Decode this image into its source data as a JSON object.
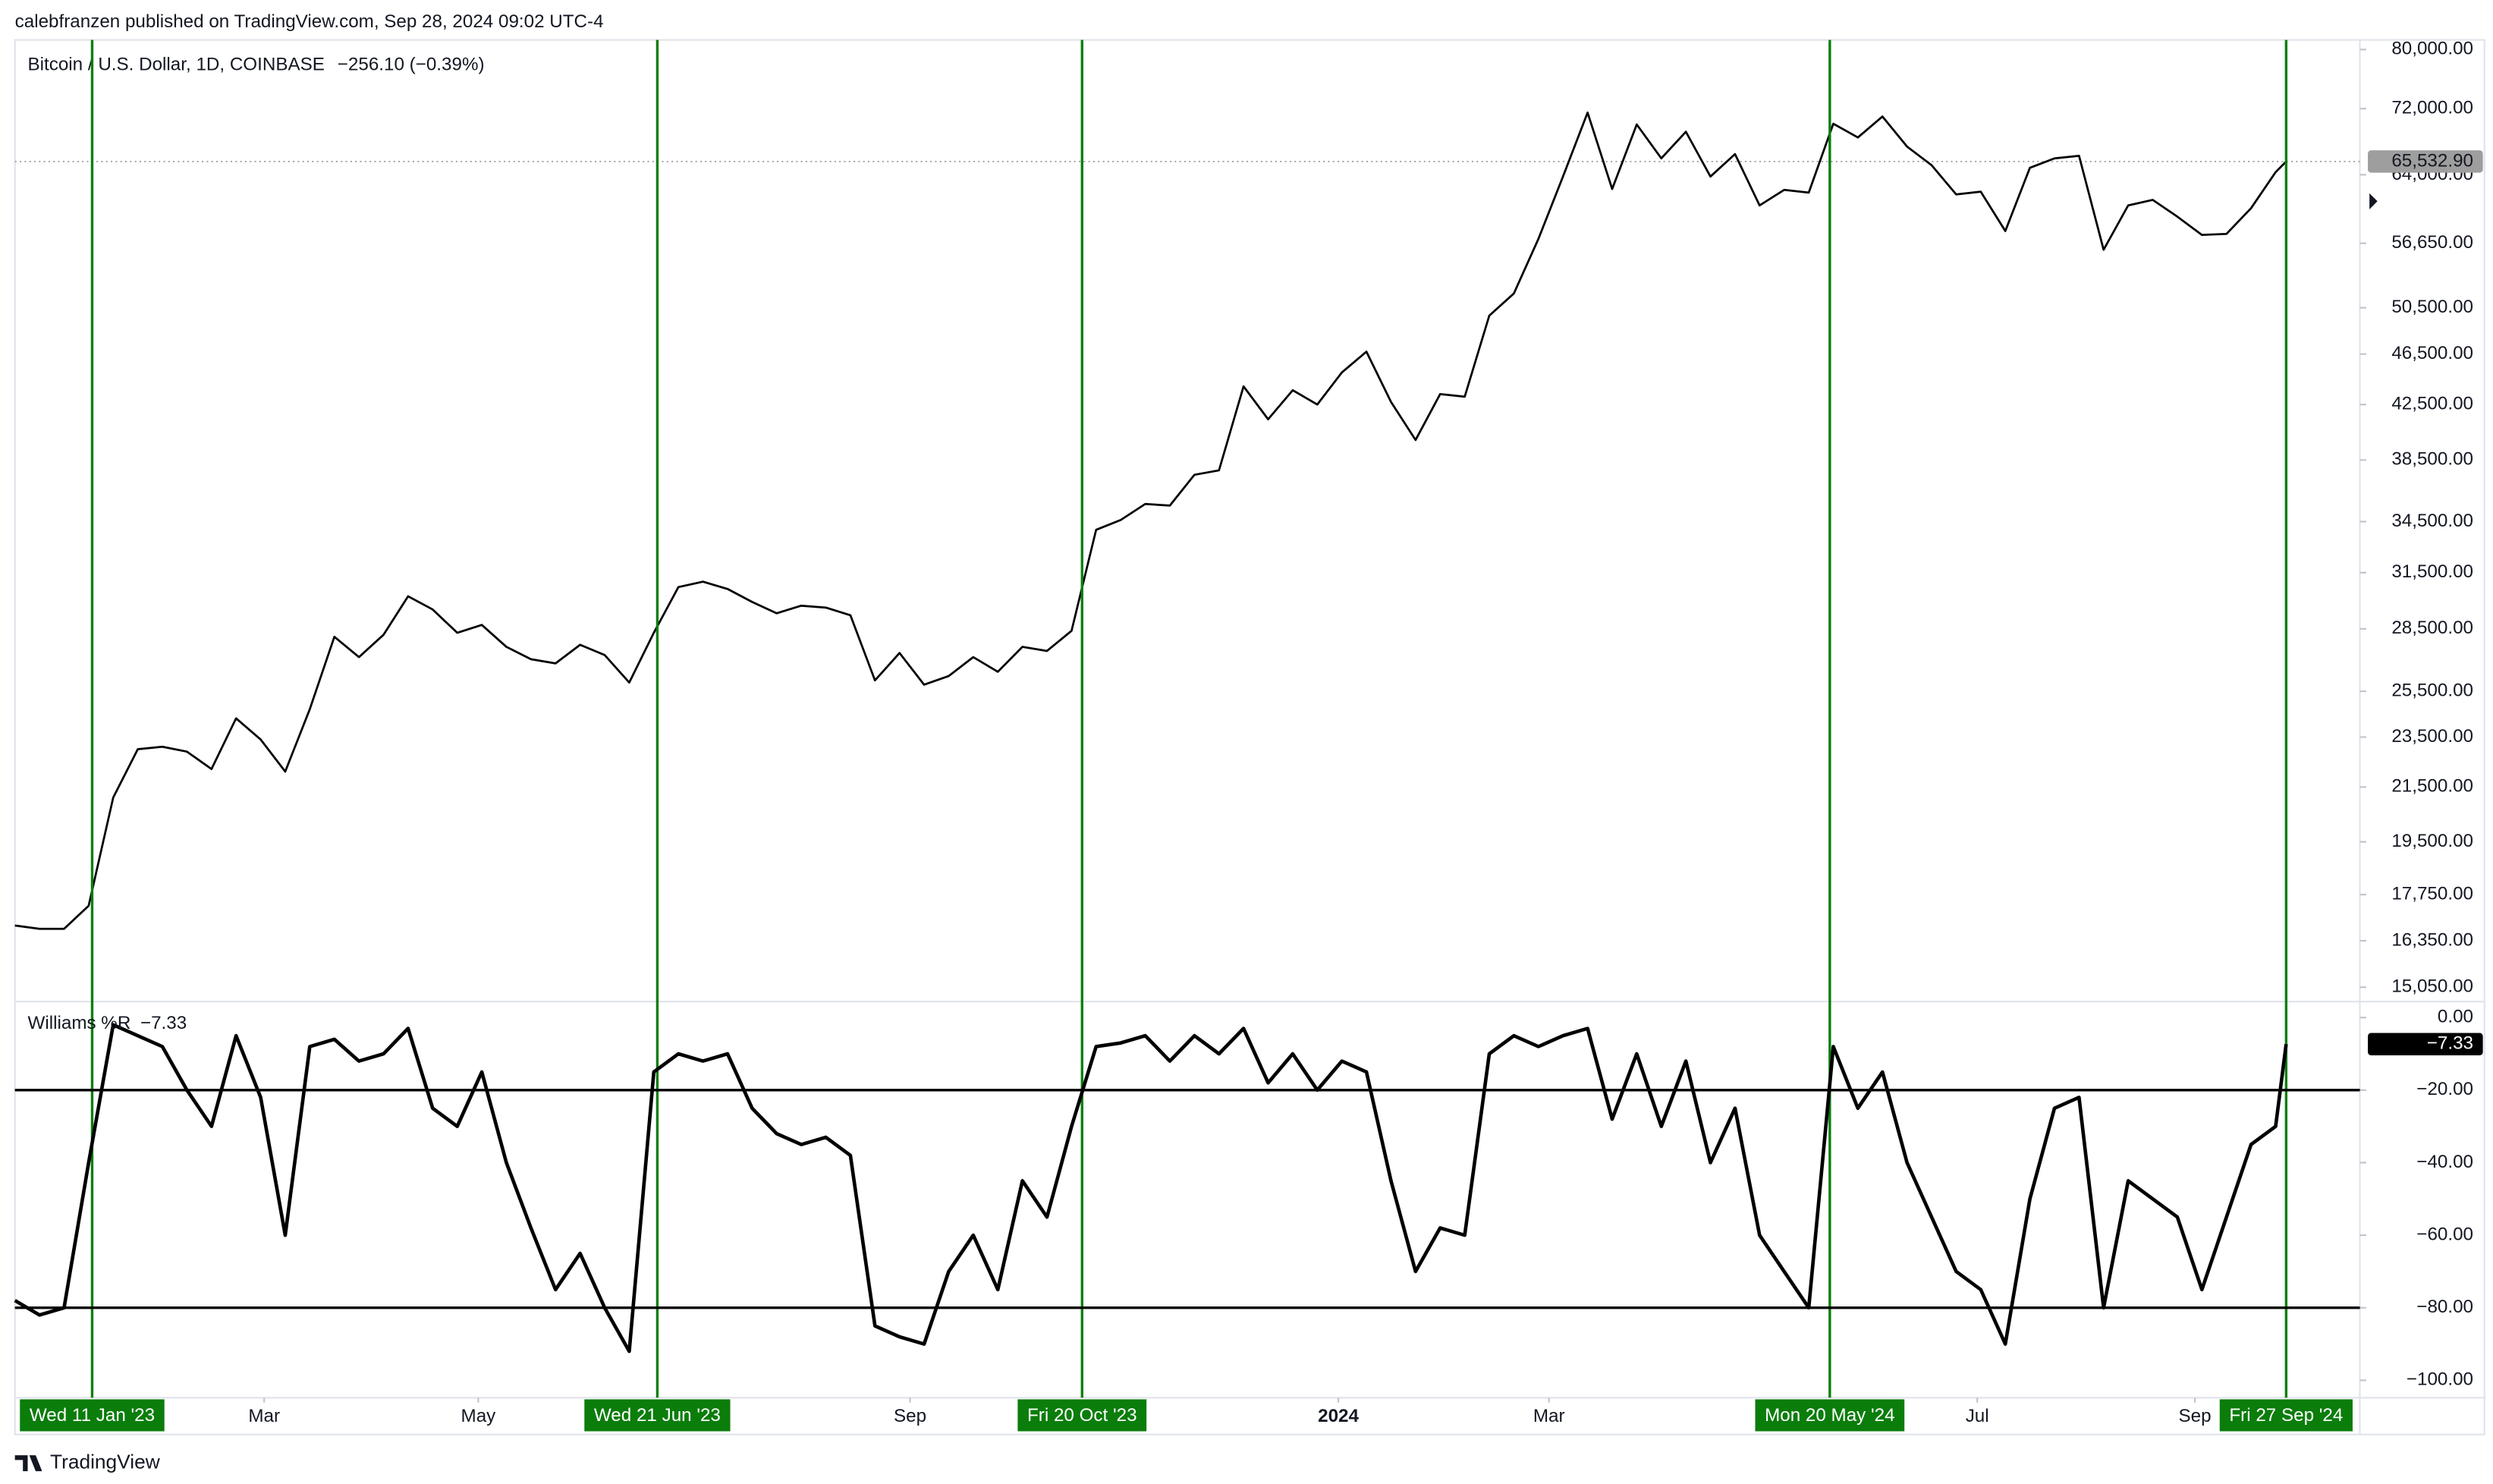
{
  "header": {
    "publisher": "calebfranzen published on TradingView.com, Sep 28, 2024 09:02 UTC-4",
    "footer": "TradingView"
  },
  "chart_data": [
    {
      "type": "line",
      "title": "Bitcoin / U.S. Dollar, 1D, COINBASE",
      "subtitle": "−256.10 (−0.39%)",
      "log_scale": true,
      "grid": false,
      "color": "#000000",
      "xlim": [
        "2022-12-20",
        "2024-10-18"
      ],
      "x": [
        "2022-12-20",
        "2022-12-27",
        "2023-01-03",
        "2023-01-10",
        "2023-01-17",
        "2023-01-24",
        "2023-01-31",
        "2023-02-07",
        "2023-02-14",
        "2023-02-21",
        "2023-02-28",
        "2023-03-07",
        "2023-03-14",
        "2023-03-21",
        "2023-03-28",
        "2023-04-04",
        "2023-04-11",
        "2023-04-18",
        "2023-04-25",
        "2023-05-02",
        "2023-05-09",
        "2023-05-16",
        "2023-05-23",
        "2023-05-30",
        "2023-06-06",
        "2023-06-13",
        "2023-06-20",
        "2023-06-27",
        "2023-07-04",
        "2023-07-11",
        "2023-07-18",
        "2023-07-25",
        "2023-08-01",
        "2023-08-08",
        "2023-08-15",
        "2023-08-22",
        "2023-08-29",
        "2023-09-05",
        "2023-09-12",
        "2023-09-19",
        "2023-09-26",
        "2023-10-03",
        "2023-10-10",
        "2023-10-17",
        "2023-10-24",
        "2023-10-31",
        "2023-11-07",
        "2023-11-14",
        "2023-11-21",
        "2023-11-28",
        "2023-12-05",
        "2023-12-12",
        "2023-12-19",
        "2023-12-26",
        "2024-01-02",
        "2024-01-09",
        "2024-01-16",
        "2024-01-23",
        "2024-01-30",
        "2024-02-06",
        "2024-02-13",
        "2024-02-20",
        "2024-02-27",
        "2024-03-05",
        "2024-03-12",
        "2024-03-19",
        "2024-03-26",
        "2024-04-02",
        "2024-04-09",
        "2024-04-16",
        "2024-04-23",
        "2024-04-30",
        "2024-05-07",
        "2024-05-14",
        "2024-05-21",
        "2024-05-28",
        "2024-06-04",
        "2024-06-11",
        "2024-06-18",
        "2024-06-25",
        "2024-07-02",
        "2024-07-09",
        "2024-07-16",
        "2024-07-23",
        "2024-07-30",
        "2024-08-06",
        "2024-08-13",
        "2024-08-20",
        "2024-08-27",
        "2024-09-03",
        "2024-09-10",
        "2024-09-17",
        "2024-09-24",
        "2024-09-27"
      ],
      "values": [
        16800,
        16700,
        16700,
        17400,
        21100,
        23000,
        23100,
        22900,
        22200,
        24300,
        23400,
        22100,
        24700,
        28100,
        27100,
        28200,
        30200,
        29500,
        28300,
        28700,
        27600,
        27000,
        26800,
        27700,
        27200,
        25900,
        28300,
        30700,
        31000,
        30600,
        29900,
        29300,
        29700,
        29600,
        29200,
        26000,
        27300,
        25800,
        26200,
        27100,
        26400,
        27600,
        27400,
        28400,
        34000,
        34600,
        35600,
        35500,
        37500,
        37800,
        43900,
        41400,
        43600,
        42500,
        45000,
        46700,
        42700,
        39900,
        43300,
        43100,
        49800,
        51800,
        57100,
        63800,
        71500,
        62400,
        70000,
        65900,
        69100,
        63800,
        66400,
        60600,
        62300,
        62000,
        70100,
        68400,
        71000,
        67300,
        65100,
        61800,
        62100,
        57900,
        64800,
        65900,
        66200,
        56000,
        60600,
        61200,
        59400,
        57500,
        57600,
        60300,
        64300,
        65532.9
      ],
      "last_value": 65532.9,
      "last_label": "65,532.90",
      "last_label_color": "#9e9e9e",
      "ylim": [
        14670,
        81380
      ],
      "yticks": [
        {
          "value": 80000,
          "label": "80,000.00"
        },
        {
          "value": 72000,
          "label": "72,000.00"
        },
        {
          "value": 64000,
          "label": "64,000.00"
        },
        {
          "value": 56650,
          "label": "56,650.00"
        },
        {
          "value": 50500,
          "label": "50,500.00"
        },
        {
          "value": 46500,
          "label": "46,500.00"
        },
        {
          "value": 42500,
          "label": "42,500.00"
        },
        {
          "value": 38500,
          "label": "38,500.00"
        },
        {
          "value": 34500,
          "label": "34,500.00"
        },
        {
          "value": 31500,
          "label": "31,500.00"
        },
        {
          "value": 28500,
          "label": "28,500.00"
        },
        {
          "value": 25500,
          "label": "25,500.00"
        },
        {
          "value": 23500,
          "label": "23,500.00"
        },
        {
          "value": 21500,
          "label": "21,500.00"
        },
        {
          "value": 19500,
          "label": "19,500.00"
        },
        {
          "value": 17750,
          "label": "17,750.00"
        },
        {
          "value": 16350,
          "label": "16,350.00"
        },
        {
          "value": 15050,
          "label": "15,050.00"
        }
      ],
      "marker_color": "#0b7d0b",
      "markers": [
        {
          "x": "2023-01-11",
          "label": "Wed 11 Jan '23"
        },
        {
          "x": "2023-06-21",
          "label": "Wed 21 Jun '23"
        },
        {
          "x": "2023-10-20",
          "label": "Fri 20 Oct '23"
        },
        {
          "x": "2024-05-20",
          "label": "Mon 20 May '24"
        },
        {
          "x": "2024-09-27",
          "label": "Fri 27 Sep '24"
        }
      ]
    },
    {
      "type": "line",
      "title": "Williams %R",
      "grid": false,
      "color": "#000000",
      "xlim": [
        "2022-12-20",
        "2024-10-18"
      ],
      "x": [
        "2022-12-20",
        "2022-12-27",
        "2023-01-03",
        "2023-01-10",
        "2023-01-17",
        "2023-01-24",
        "2023-01-31",
        "2023-02-07",
        "2023-02-14",
        "2023-02-21",
        "2023-02-28",
        "2023-03-07",
        "2023-03-14",
        "2023-03-21",
        "2023-03-28",
        "2023-04-04",
        "2023-04-11",
        "2023-04-18",
        "2023-04-25",
        "2023-05-02",
        "2023-05-09",
        "2023-05-16",
        "2023-05-23",
        "2023-05-30",
        "2023-06-06",
        "2023-06-13",
        "2023-06-20",
        "2023-06-27",
        "2023-07-04",
        "2023-07-11",
        "2023-07-18",
        "2023-07-25",
        "2023-08-01",
        "2023-08-08",
        "2023-08-15",
        "2023-08-22",
        "2023-08-29",
        "2023-09-05",
        "2023-09-12",
        "2023-09-19",
        "2023-09-26",
        "2023-10-03",
        "2023-10-10",
        "2023-10-17",
        "2023-10-24",
        "2023-10-31",
        "2023-11-07",
        "2023-11-14",
        "2023-11-21",
        "2023-11-28",
        "2023-12-05",
        "2023-12-12",
        "2023-12-19",
        "2023-12-26",
        "2024-01-02",
        "2024-01-09",
        "2024-01-16",
        "2024-01-23",
        "2024-01-30",
        "2024-02-06",
        "2024-02-13",
        "2024-02-20",
        "2024-02-27",
        "2024-03-05",
        "2024-03-12",
        "2024-03-19",
        "2024-03-26",
        "2024-04-02",
        "2024-04-09",
        "2024-04-16",
        "2024-04-23",
        "2024-04-30",
        "2024-05-07",
        "2024-05-14",
        "2024-05-21",
        "2024-05-28",
        "2024-06-04",
        "2024-06-11",
        "2024-06-18",
        "2024-06-25",
        "2024-07-02",
        "2024-07-09",
        "2024-07-16",
        "2024-07-23",
        "2024-07-30",
        "2024-08-06",
        "2024-08-13",
        "2024-08-20",
        "2024-08-27",
        "2024-09-03",
        "2024-09-10",
        "2024-09-17",
        "2024-09-24",
        "2024-09-27"
      ],
      "values": [
        -78,
        -82,
        -80,
        -40,
        -2,
        -5,
        -8,
        -20,
        -30,
        -5,
        -22,
        -60,
        -8,
        -6,
        -12,
        -10,
        -3,
        -25,
        -30,
        -15,
        -40,
        -58,
        -75,
        -65,
        -80,
        -92,
        -15,
        -10,
        -12,
        -10,
        -25,
        -32,
        -35,
        -33,
        -38,
        -85,
        -88,
        -90,
        -70,
        -60,
        -75,
        -45,
        -55,
        -30,
        -8,
        -7,
        -5,
        -12,
        -5,
        -10,
        -3,
        -18,
        -10,
        -20,
        -12,
        -15,
        -45,
        -70,
        -58,
        -60,
        -10,
        -5,
        -8,
        -5,
        -3,
        -28,
        -10,
        -30,
        -12,
        -40,
        -25,
        -60,
        -70,
        -80,
        -8,
        -25,
        -15,
        -40,
        -55,
        -70,
        -75,
        -90,
        -50,
        -25,
        -22,
        -80,
        -45,
        -50,
        -55,
        -75,
        -55,
        -35,
        -30,
        -7.33
      ],
      "last_label": "−7.33",
      "last_label_color": "#000000",
      "levels": [
        -20,
        -80
      ],
      "ylim": [
        -104.8,
        4.4
      ],
      "yticks": [
        {
          "value": 0,
          "label": "0.00"
        },
        {
          "value": -20,
          "label": "−20.00"
        },
        {
          "value": -40,
          "label": "−40.00"
        },
        {
          "value": -60,
          "label": "−60.00"
        },
        {
          "value": -80,
          "label": "−80.00"
        },
        {
          "value": -100,
          "label": "−100.00"
        }
      ],
      "xticks": [
        {
          "value": "2023-03-01",
          "label": "Mar"
        },
        {
          "value": "2023-05-01",
          "label": "May"
        },
        {
          "value": "2023-09-01",
          "label": "Sep"
        },
        {
          "value": "2024-01-01",
          "label": "2024"
        },
        {
          "value": "2024-03-01",
          "label": "Mar"
        },
        {
          "value": "2024-07-01",
          "label": "Jul"
        },
        {
          "value": "2024-09-01",
          "label": "Sep"
        }
      ]
    }
  ]
}
